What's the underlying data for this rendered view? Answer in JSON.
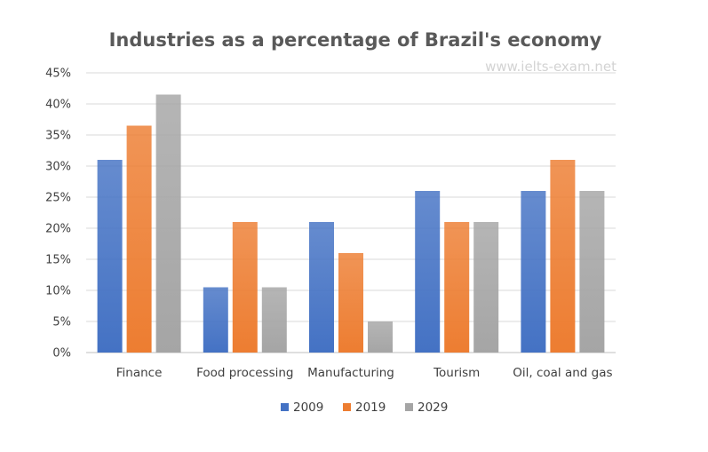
{
  "chart_data": {
    "type": "bar",
    "title": "Industries as a percentage of Brazil's economy",
    "watermark": "www.ielts-exam.net",
    "categories": [
      "Finance",
      "Food processing",
      "Manufacturing",
      "Tourism",
      "Oil, coal and gas"
    ],
    "series": [
      {
        "name": "2009",
        "color": "#4472c4",
        "values": [
          31,
          10.5,
          21,
          26,
          26
        ]
      },
      {
        "name": "2019",
        "color": "#ed7d31",
        "values": [
          36.5,
          21,
          16,
          21,
          31
        ]
      },
      {
        "name": "2029",
        "color": "#a5a5a5",
        "values": [
          41.5,
          10.5,
          5,
          21,
          26
        ]
      }
    ],
    "ylim": [
      0,
      45
    ],
    "yticks": [
      "0%",
      "5%",
      "10%",
      "15%",
      "20%",
      "25%",
      "30%",
      "35%",
      "40%",
      "45%"
    ],
    "grid": true,
    "legend_position": "bottom"
  }
}
